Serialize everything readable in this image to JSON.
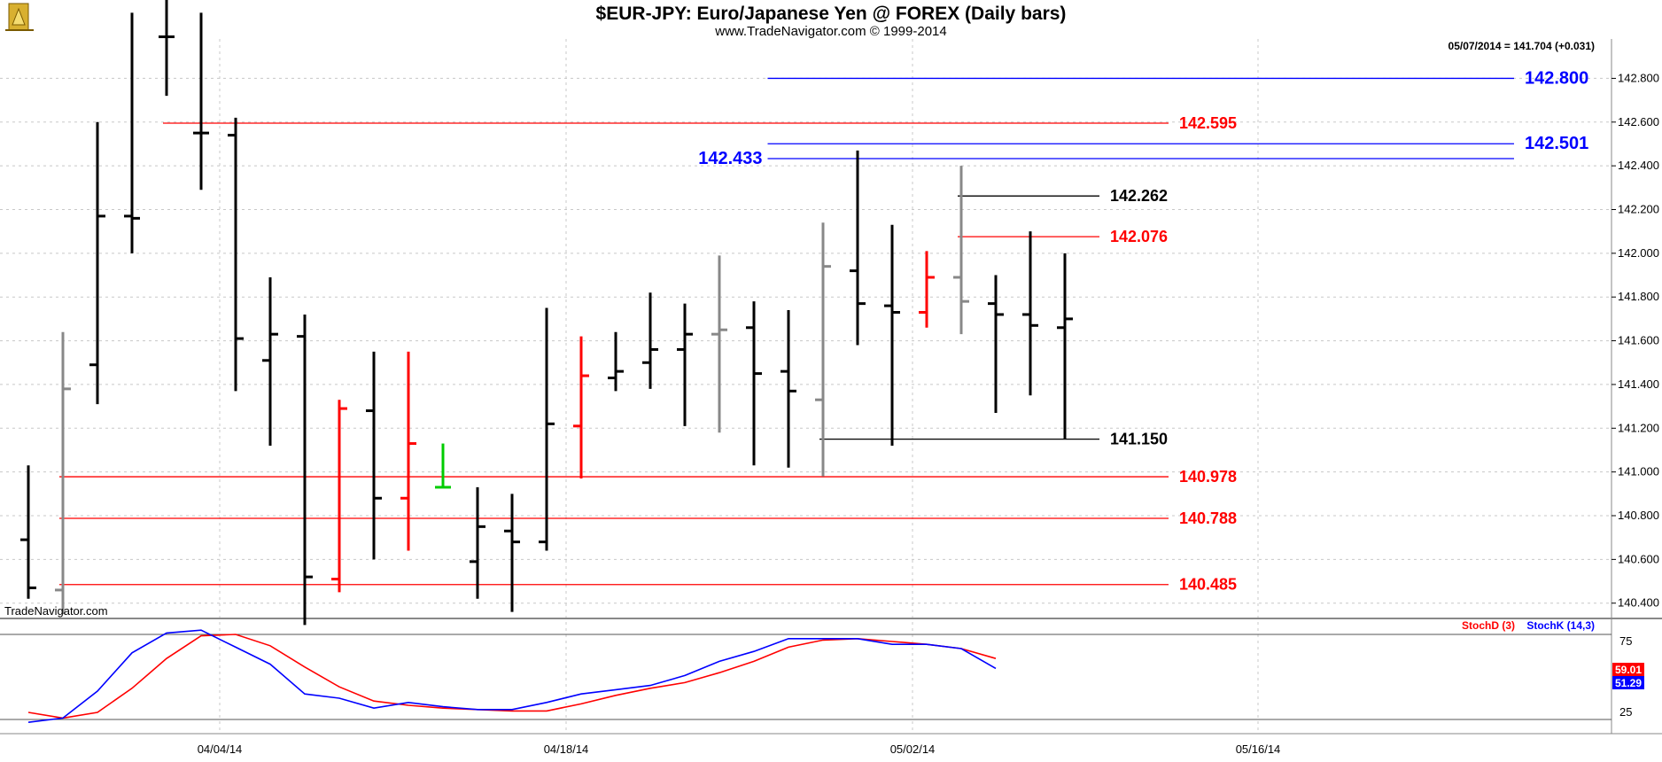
{
  "header": {
    "title": "$EUR-JPY:  Euro/Japanese Yen @ FOREX  (Daily bars)",
    "subtitle": "www.TradeNavigator.com © 1999-2014",
    "last_quote": "05/07/2014 = 141.704 (+0.031)",
    "watermark": "TradeNavigator.com"
  },
  "colors": {
    "up_bar": "#000000",
    "down_bar": "#ff0000",
    "neutral_bar": "#888888",
    "green_bar": "#00cc00",
    "red_level": "#ff0000",
    "blue_level": "#0000ff",
    "black_level": "#000000",
    "grid": "#c8c8c8",
    "stoch_d": "#ff0000",
    "stoch_k": "#0000ff"
  },
  "chart_data": [
    {
      "type": "ohlc",
      "title": "$EUR-JPY:  Euro/Japanese Yen @ FOREX  (Daily bars)",
      "ylim": [
        140.33,
        142.98
      ],
      "y_ticks": [
        "142.800",
        "142.600",
        "142.400",
        "142.200",
        "142.000",
        "141.800",
        "141.600",
        "141.400",
        "141.200",
        "141.000",
        "140.800",
        "140.600",
        "140.400"
      ],
      "x_ticks": [
        "04/04/14",
        "04/18/14",
        "05/02/14",
        "05/16/14"
      ],
      "bars": [
        {
          "o": 140.69,
          "h": 141.03,
          "l": 140.42,
          "c": 140.47,
          "color": "up_bar"
        },
        {
          "o": 140.46,
          "h": 141.64,
          "l": 140.35,
          "c": 141.38,
          "color": "neutral_bar"
        },
        {
          "o": 141.49,
          "h": 142.6,
          "l": 141.31,
          "c": 142.17,
          "color": "up_bar"
        },
        {
          "o": 142.17,
          "h": 143.1,
          "l": 142.0,
          "c": 142.16,
          "color": "up_bar"
        },
        {
          "o": 142.99,
          "h": 143.2,
          "l": 142.72,
          "c": 142.99,
          "color": "up_bar"
        },
        {
          "o": 142.55,
          "h": 143.1,
          "l": 142.29,
          "c": 142.55,
          "color": "up_bar"
        },
        {
          "o": 142.54,
          "h": 142.62,
          "l": 141.37,
          "c": 141.61,
          "color": "up_bar"
        },
        {
          "o": 141.51,
          "h": 141.89,
          "l": 141.12,
          "c": 141.63,
          "color": "up_bar"
        },
        {
          "o": 141.62,
          "h": 141.72,
          "l": 140.3,
          "c": 140.52,
          "color": "up_bar"
        },
        {
          "o": 140.51,
          "h": 141.33,
          "l": 140.45,
          "c": 141.29,
          "color": "down_bar"
        },
        {
          "o": 141.28,
          "h": 141.55,
          "l": 140.6,
          "c": 140.88,
          "color": "up_bar"
        },
        {
          "o": 140.88,
          "h": 141.55,
          "l": 140.64,
          "c": 141.13,
          "color": "down_bar"
        },
        {
          "o": 140.93,
          "h": 141.13,
          "l": 140.93,
          "c": 140.93,
          "color": "green_bar"
        },
        {
          "o": 140.59,
          "h": 140.93,
          "l": 140.42,
          "c": 140.75,
          "color": "up_bar"
        },
        {
          "o": 140.73,
          "h": 140.9,
          "l": 140.36,
          "c": 140.68,
          "color": "up_bar"
        },
        {
          "o": 140.68,
          "h": 141.75,
          "l": 140.64,
          "c": 141.22,
          "color": "up_bar"
        },
        {
          "o": 141.21,
          "h": 141.62,
          "l": 140.97,
          "c": 141.44,
          "color": "down_bar"
        },
        {
          "o": 141.43,
          "h": 141.64,
          "l": 141.37,
          "c": 141.46,
          "color": "up_bar"
        },
        {
          "o": 141.5,
          "h": 141.82,
          "l": 141.38,
          "c": 141.56,
          "color": "up_bar"
        },
        {
          "o": 141.56,
          "h": 141.77,
          "l": 141.21,
          "c": 141.63,
          "color": "up_bar"
        },
        {
          "o": 141.63,
          "h": 141.99,
          "l": 141.18,
          "c": 141.65,
          "color": "neutral_bar"
        },
        {
          "o": 141.66,
          "h": 141.78,
          "l": 141.03,
          "c": 141.45,
          "color": "up_bar"
        },
        {
          "o": 141.46,
          "h": 141.74,
          "l": 141.02,
          "c": 141.37,
          "color": "up_bar"
        },
        {
          "o": 141.33,
          "h": 142.14,
          "l": 140.98,
          "c": 141.94,
          "color": "neutral_bar"
        },
        {
          "o": 141.92,
          "h": 142.47,
          "l": 141.58,
          "c": 141.77,
          "color": "up_bar"
        },
        {
          "o": 141.76,
          "h": 142.13,
          "l": 141.12,
          "c": 141.73,
          "color": "up_bar"
        },
        {
          "o": 141.73,
          "h": 142.01,
          "l": 141.66,
          "c": 141.89,
          "color": "down_bar"
        },
        {
          "o": 141.89,
          "h": 142.4,
          "l": 141.63,
          "c": 141.78,
          "color": "neutral_bar"
        },
        {
          "o": 141.77,
          "h": 141.9,
          "l": 141.27,
          "c": 141.72,
          "color": "up_bar"
        },
        {
          "o": 141.72,
          "h": 142.1,
          "l": 141.35,
          "c": 141.67,
          "color": "up_bar"
        },
        {
          "o": 141.66,
          "h": 142.0,
          "l": 141.15,
          "c": 141.7,
          "color": "up_bar"
        }
      ],
      "levels": [
        {
          "value": 142.8,
          "label": "142.800",
          "color": "blue_level",
          "from_bar": 21.5,
          "to_bar": 43,
          "label_side": "right"
        },
        {
          "value": 142.595,
          "label": "142.595",
          "color": "red_level",
          "from_bar": 4,
          "to_bar": 33,
          "label_side": "right"
        },
        {
          "value": 142.501,
          "label": "142.501",
          "color": "blue_level",
          "from_bar": 21.5,
          "to_bar": 43,
          "label_side": "right"
        },
        {
          "value": 142.433,
          "label": "142.433",
          "color": "blue_level",
          "from_bar": 21.5,
          "to_bar": 43,
          "label_side": "left"
        },
        {
          "value": 142.262,
          "label": "142.262",
          "color": "black_level",
          "from_bar": 27,
          "to_bar": 31,
          "label_side": "right"
        },
        {
          "value": 142.076,
          "label": "142.076",
          "color": "red_level",
          "from_bar": 27,
          "to_bar": 31,
          "label_side": "right"
        },
        {
          "value": 141.15,
          "label": "141.150",
          "color": "black_level",
          "from_bar": 23,
          "to_bar": 31,
          "label_side": "right"
        },
        {
          "value": 140.978,
          "label": "140.978",
          "color": "red_level",
          "from_bar": 1,
          "to_bar": 33,
          "label_side": "right"
        },
        {
          "value": 140.788,
          "label": "140.788",
          "color": "red_level",
          "from_bar": 1,
          "to_bar": 33,
          "label_side": "right"
        },
        {
          "value": 140.485,
          "label": "140.485",
          "color": "red_level",
          "from_bar": 1,
          "to_bar": 33,
          "label_side": "right"
        }
      ]
    },
    {
      "type": "line",
      "title": "",
      "ylim": [
        10,
        90
      ],
      "y_ticks": [
        "75",
        "25"
      ],
      "series": [
        {
          "name": "StochD (3)",
          "color": "stoch_d",
          "values": [
            25,
            21,
            25,
            42,
            63,
            79,
            80,
            72,
            57,
            43,
            33,
            30,
            28,
            27,
            26,
            26,
            31,
            37,
            42,
            46,
            53,
            61,
            71,
            76,
            77,
            75,
            73,
            70,
            63
          ]
        },
        {
          "name": "StochK (14,3)",
          "color": "stoch_k",
          "values": [
            18,
            21,
            40,
            67,
            81,
            83,
            71,
            59,
            38,
            35,
            28,
            32,
            29,
            27,
            27,
            32,
            38,
            41,
            44,
            51,
            61,
            68,
            77,
            77,
            77,
            73,
            73,
            70,
            56
          ]
        }
      ],
      "reference_lines": [
        80,
        20
      ],
      "last_values": [
        "59.01",
        "51.29"
      ]
    }
  ]
}
